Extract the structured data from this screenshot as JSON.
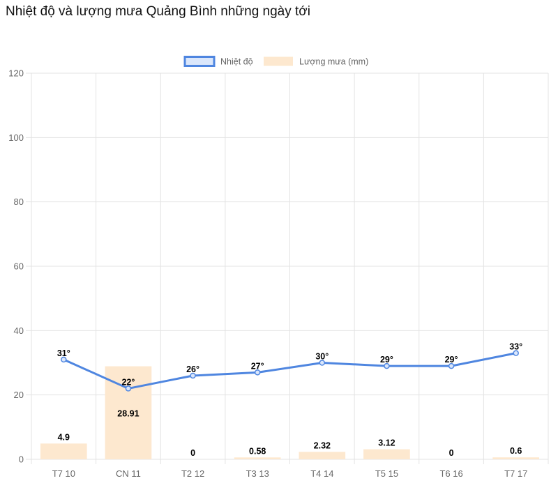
{
  "title": "Nhiệt độ và lượng mưa Quảng Bình những ngày tới",
  "chart_data": {
    "type": "bar+line",
    "categories": [
      "T7 10",
      "CN 11",
      "T2 12",
      "T3 13",
      "T4 14",
      "T5 15",
      "T6 16",
      "T7 17"
    ],
    "series": [
      {
        "name": "Nhiệt độ",
        "type": "line",
        "values": [
          31,
          22,
          26,
          27,
          30,
          29,
          29,
          33
        ],
        "labels": [
          "31°",
          "22°",
          "26°",
          "27°",
          "30°",
          "29°",
          "29°",
          "33°"
        ],
        "color": "#4f86e0",
        "fill": "#dbe7fb"
      },
      {
        "name": "Lượng mưa (mm)",
        "type": "bar",
        "values": [
          4.9,
          28.91,
          0,
          0.58,
          2.32,
          3.12,
          0,
          0.6
        ],
        "labels": [
          "4.9",
          "28.91",
          "0",
          "0.58",
          "2.32",
          "3.12",
          "0",
          "0.6"
        ],
        "color": "#fde8cf"
      }
    ],
    "yticks": [
      "0",
      "20",
      "40",
      "60",
      "80",
      "100",
      "120"
    ],
    "ylim": [
      0,
      120
    ],
    "grid": true,
    "legend": "top"
  }
}
